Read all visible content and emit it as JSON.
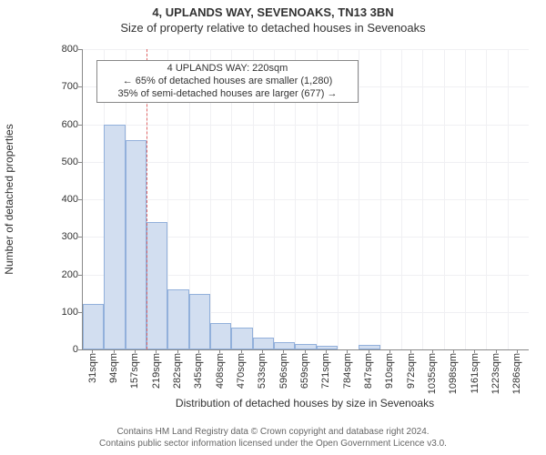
{
  "title": "4, UPLANDS WAY, SEVENOAKS, TN13 3BN",
  "subtitle": "Size of property relative to detached houses in Sevenoaks",
  "chart": {
    "type": "histogram",
    "ylabel": "Number of detached properties",
    "xlabel": "Distribution of detached houses by size in Sevenoaks",
    "ylim_max": 800,
    "ytick_step": 100,
    "bar_fill": "#d2def0",
    "bar_stroke": "#92b0db",
    "grid_color": "#f0f0f3",
    "axis_color": "#888888",
    "title_fontsize": 13,
    "subtitle_fontsize": 13,
    "axis_label_fontsize": 12,
    "tick_fontsize": 11,
    "bars": [
      {
        "label": "31sqm",
        "value": 122
      },
      {
        "label": "94sqm",
        "value": 600
      },
      {
        "label": "157sqm",
        "value": 558
      },
      {
        "label": "219sqm",
        "value": 340
      },
      {
        "label": "282sqm",
        "value": 160
      },
      {
        "label": "345sqm",
        "value": 148
      },
      {
        "label": "408sqm",
        "value": 70
      },
      {
        "label": "470sqm",
        "value": 58
      },
      {
        "label": "533sqm",
        "value": 32
      },
      {
        "label": "596sqm",
        "value": 20
      },
      {
        "label": "659sqm",
        "value": 14
      },
      {
        "label": "721sqm",
        "value": 10
      },
      {
        "label": "784sqm",
        "value": 0
      },
      {
        "label": "847sqm",
        "value": 12
      },
      {
        "label": "910sqm",
        "value": 0
      },
      {
        "label": "972sqm",
        "value": 0
      },
      {
        "label": "1035sqm",
        "value": 0
      },
      {
        "label": "1098sqm",
        "value": 0
      },
      {
        "label": "1161sqm",
        "value": 0
      },
      {
        "label": "1223sqm",
        "value": 0
      },
      {
        "label": "1286sqm",
        "value": 0
      }
    ],
    "marker": {
      "bar_index": 3,
      "line_color": "#e06666"
    },
    "annotation": {
      "lines": [
        "4 UPLANDS WAY: 220sqm",
        "← 65% of detached houses are smaller (1,280)",
        "35% of semi-detached houses are larger (677) →"
      ],
      "border_color": "#888888",
      "bg_color": "#ffffff",
      "fontsize": 11
    }
  },
  "footer": {
    "line1": "Contains HM Land Registry data © Crown copyright and database right 2024.",
    "line2": "Contains public sector information licensed under the Open Government Licence v3.0.",
    "fontsize": 10,
    "color": "#666666"
  }
}
